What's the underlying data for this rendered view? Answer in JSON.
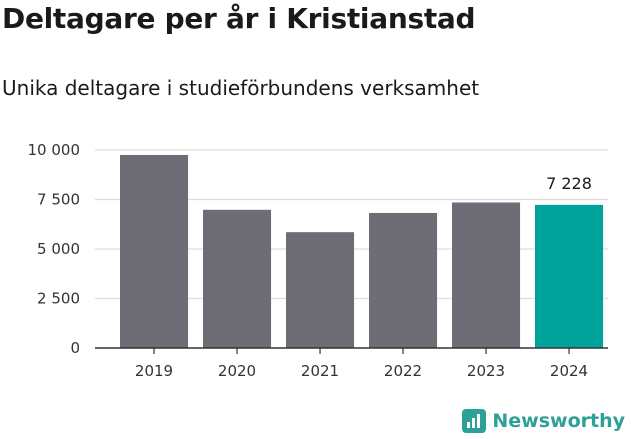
{
  "title": "Deltagare per år i Kristianstad",
  "subtitle": "Unika deltagare i studieförbundens verksamhet",
  "brand": "Newsworthy",
  "colors": {
    "bar": "#6e6d75",
    "highlight": "#00a399",
    "grid": "#dddddd",
    "axis": "#333333",
    "brand": "#2fa097"
  },
  "chart_data": {
    "type": "bar",
    "categories": [
      "2019",
      "2020",
      "2021",
      "2022",
      "2023",
      "2024"
    ],
    "values": [
      9750,
      6980,
      5850,
      6820,
      7350,
      7228
    ],
    "highlight_index": 5,
    "data_labels": [
      {
        "index": 5,
        "text": "7 228"
      }
    ],
    "ylim": [
      0,
      10000
    ],
    "yticks": [
      0,
      2500,
      5000,
      7500,
      10000
    ],
    "ytick_labels": [
      "0",
      "2 500",
      "5 000",
      "7 500",
      "10 000"
    ],
    "grid": true,
    "xlabel": "",
    "ylabel": ""
  }
}
